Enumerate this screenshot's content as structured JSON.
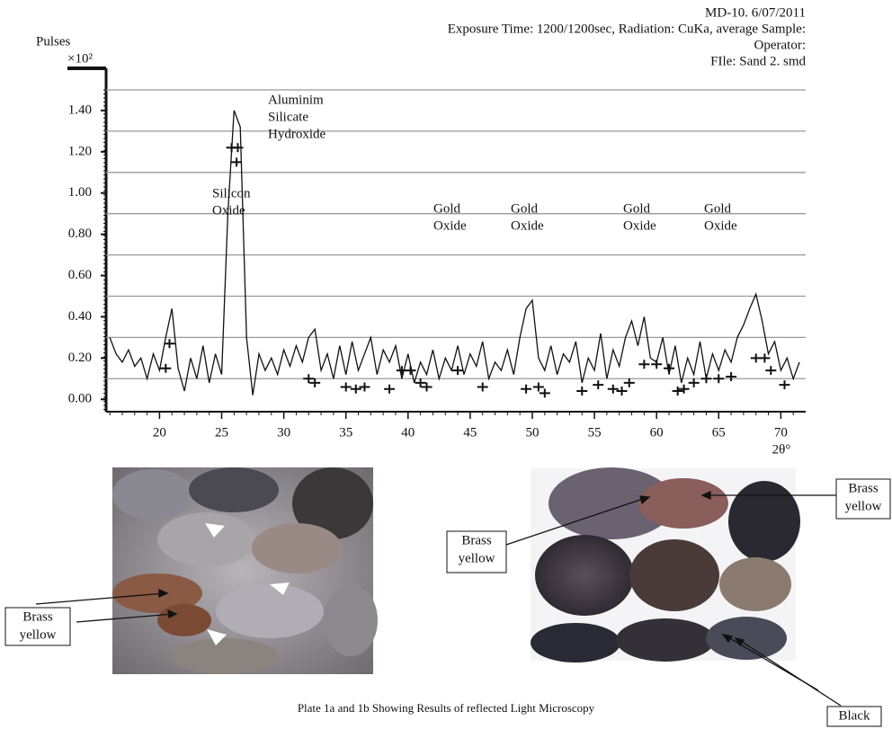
{
  "chart_data": {
    "type": "line",
    "header": [
      "MD-10. 6/07/2011",
      "Exposure Time: 1200/1200sec, Radiation: CuKa, average Sample:",
      "Operator:",
      "FIle: Sand 2. smd"
    ],
    "y_label": "Pulses",
    "y_unit": "×10²",
    "x_label": "2θ°",
    "xlim": [
      15.7,
      72
    ],
    "xticks": [
      20,
      25,
      30,
      35,
      40,
      45,
      50,
      55,
      60,
      65,
      70
    ],
    "ylim": [
      -0.06,
      1.5
    ],
    "yticks": [
      {
        "value": 0,
        "label": "0.00"
      },
      {
        "value": 0.2,
        "label": "0.20"
      },
      {
        "value": 0.4,
        "label": "0.40"
      },
      {
        "value": 0.6,
        "label": "0.60"
      },
      {
        "value": 0.8,
        "label": "0.80"
      },
      {
        "value": 1,
        "label": "1.00"
      },
      {
        "value": 1.2,
        "label": "1.20"
      },
      {
        "value": 1.4,
        "label": "1.40"
      }
    ],
    "grid_lines": [
      0.1,
      0.3,
      0.5,
      0.7,
      0.9,
      1.1,
      1.3,
      1.5
    ],
    "series": [
      {
        "color": "#111111",
        "x": [
          16.0,
          16.5,
          17.0,
          17.5,
          18.0,
          18.5,
          19.0,
          19.5,
          20.0,
          20.5,
          21.0,
          21.5,
          22.0,
          22.5,
          23.0,
          23.5,
          24.0,
          24.5,
          25.0,
          25.5,
          26.0,
          26.5,
          27.0,
          27.5,
          28.0,
          28.5,
          29.0,
          29.5,
          30.0,
          30.5,
          31.0,
          31.5,
          32.0,
          32.5,
          33.0,
          33.5,
          34.0,
          34.5,
          35.0,
          35.5,
          36.0,
          36.5,
          37.0,
          37.5,
          38.0,
          38.5,
          39.0,
          39.5,
          40.0,
          40.5,
          41.0,
          41.5,
          42.0,
          42.5,
          43.0,
          43.5,
          44.0,
          44.5,
          45.0,
          45.5,
          46.0,
          46.5,
          47.0,
          47.5,
          48.0,
          48.5,
          49.0,
          49.5,
          50.0,
          50.5,
          51.0,
          51.5,
          52.0,
          52.5,
          53.0,
          53.5,
          54.0,
          54.5,
          55.0,
          55.5,
          56.0,
          56.5,
          57.0,
          57.5,
          58.0,
          58.5,
          59.0,
          59.5,
          60.0,
          60.5,
          61.0,
          61.5,
          62.0,
          62.5,
          63.0,
          63.5,
          64.0,
          64.5,
          65.0,
          65.5,
          66.0,
          66.5,
          67.0,
          67.5,
          68.0,
          68.5,
          69.0,
          69.5,
          70.0,
          70.5,
          71.0,
          71.5
        ],
        "values": [
          0.3,
          0.22,
          0.18,
          0.24,
          0.16,
          0.2,
          0.1,
          0.22,
          0.14,
          0.3,
          0.44,
          0.15,
          0.04,
          0.2,
          0.1,
          0.26,
          0.08,
          0.22,
          0.12,
          0.9,
          1.4,
          1.32,
          0.3,
          0.02,
          0.22,
          0.14,
          0.2,
          0.12,
          0.24,
          0.16,
          0.26,
          0.18,
          0.3,
          0.34,
          0.14,
          0.22,
          0.1,
          0.26,
          0.12,
          0.28,
          0.14,
          0.22,
          0.3,
          0.12,
          0.24,
          0.18,
          0.26,
          0.1,
          0.22,
          0.08,
          0.18,
          0.12,
          0.24,
          0.1,
          0.2,
          0.14,
          0.26,
          0.12,
          0.22,
          0.16,
          0.28,
          0.1,
          0.18,
          0.14,
          0.24,
          0.12,
          0.3,
          0.44,
          0.48,
          0.2,
          0.14,
          0.26,
          0.12,
          0.22,
          0.18,
          0.28,
          0.08,
          0.2,
          0.14,
          0.32,
          0.1,
          0.24,
          0.16,
          0.3,
          0.38,
          0.26,
          0.4,
          0.2,
          0.18,
          0.3,
          0.12,
          0.26,
          0.08,
          0.2,
          0.12,
          0.28,
          0.1,
          0.22,
          0.14,
          0.24,
          0.18,
          0.3,
          0.36,
          0.44,
          0.51,
          0.38,
          0.22,
          0.28,
          0.14,
          0.2,
          0.1,
          0.18
        ]
      }
    ],
    "reference_marks": {
      "x": [
        20.5,
        20.8,
        25.8,
        26.3,
        26.2,
        32,
        32.5,
        35,
        35.8,
        36.5,
        38.5,
        39.5,
        40.2,
        41,
        41.5,
        44,
        46,
        49.5,
        50.5,
        51,
        54,
        55.3,
        56.5,
        57.2,
        57.8,
        59,
        60,
        61,
        61.7,
        62.2,
        63,
        64,
        65,
        66,
        68,
        68.7,
        69.2,
        70.3
      ],
      "values": [
        0.15,
        0.27,
        1.22,
        1.22,
        1.15,
        0.1,
        0.08,
        0.06,
        0.05,
        0.06,
        0.05,
        0.14,
        0.14,
        0.08,
        0.06,
        0.14,
        0.06,
        0.05,
        0.06,
        0.03,
        0.04,
        0.07,
        0.05,
        0.04,
        0.08,
        0.17,
        0.17,
        0.15,
        0.04,
        0.05,
        0.08,
        0.1,
        0.1,
        0.11,
        0.2,
        0.2,
        0.14,
        0.07
      ]
    },
    "annotations": [
      {
        "lines": [
          "Aluminim",
          "Silicate",
          "Hydroxide"
        ]
      },
      {
        "lines": [
          "Silicon",
          "Oxide"
        ]
      },
      {
        "lines": [
          "Gold",
          "Oxide"
        ]
      },
      {
        "lines": [
          "Gold",
          "Oxide"
        ]
      },
      {
        "lines": [
          "Gold",
          "Oxide"
        ]
      },
      {
        "lines": [
          "Gold",
          "Oxide"
        ]
      }
    ]
  },
  "plates": {
    "labels": [
      [
        "Brass",
        "yellow"
      ],
      [
        "Brass",
        "yellow"
      ],
      [
        "Brass",
        "yellow"
      ],
      [
        "Black"
      ]
    ]
  },
  "caption": "Plate 1a and 1b  Showing Results of reflected Light Microscopy"
}
